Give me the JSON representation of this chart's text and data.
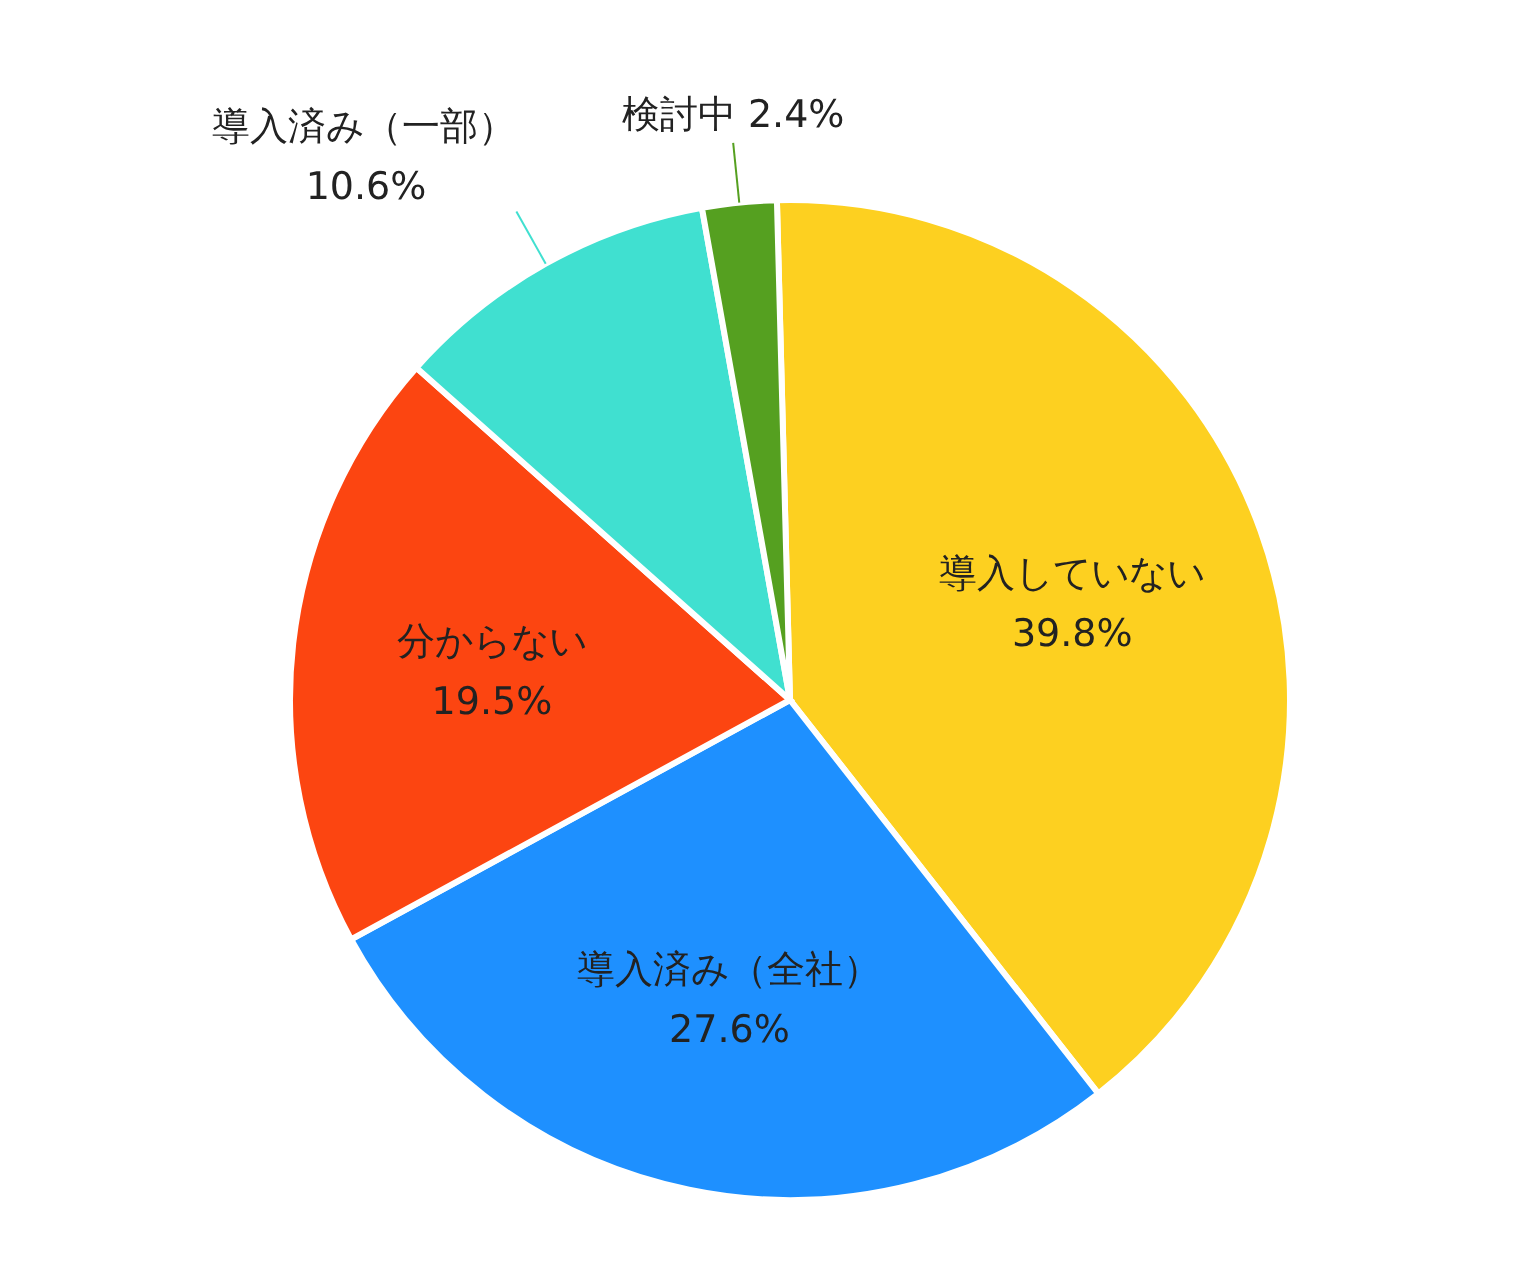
{
  "chart_data": {
    "type": "pie",
    "categories": [
      "導入していない",
      "導入済み（全社）",
      "分からない",
      "導入済み（一部）",
      "検討中"
    ],
    "values": [
      39.8,
      27.6,
      19.5,
      10.6,
      2.4
    ],
    "value_labels": [
      "39.8%",
      "27.6%",
      "19.5%",
      "10.6%",
      "2.4%"
    ],
    "colors": [
      "#fdd020",
      "#1e90ff",
      "#fc4511",
      "#40e0d0",
      "#55a020"
    ],
    "legend": false
  }
}
